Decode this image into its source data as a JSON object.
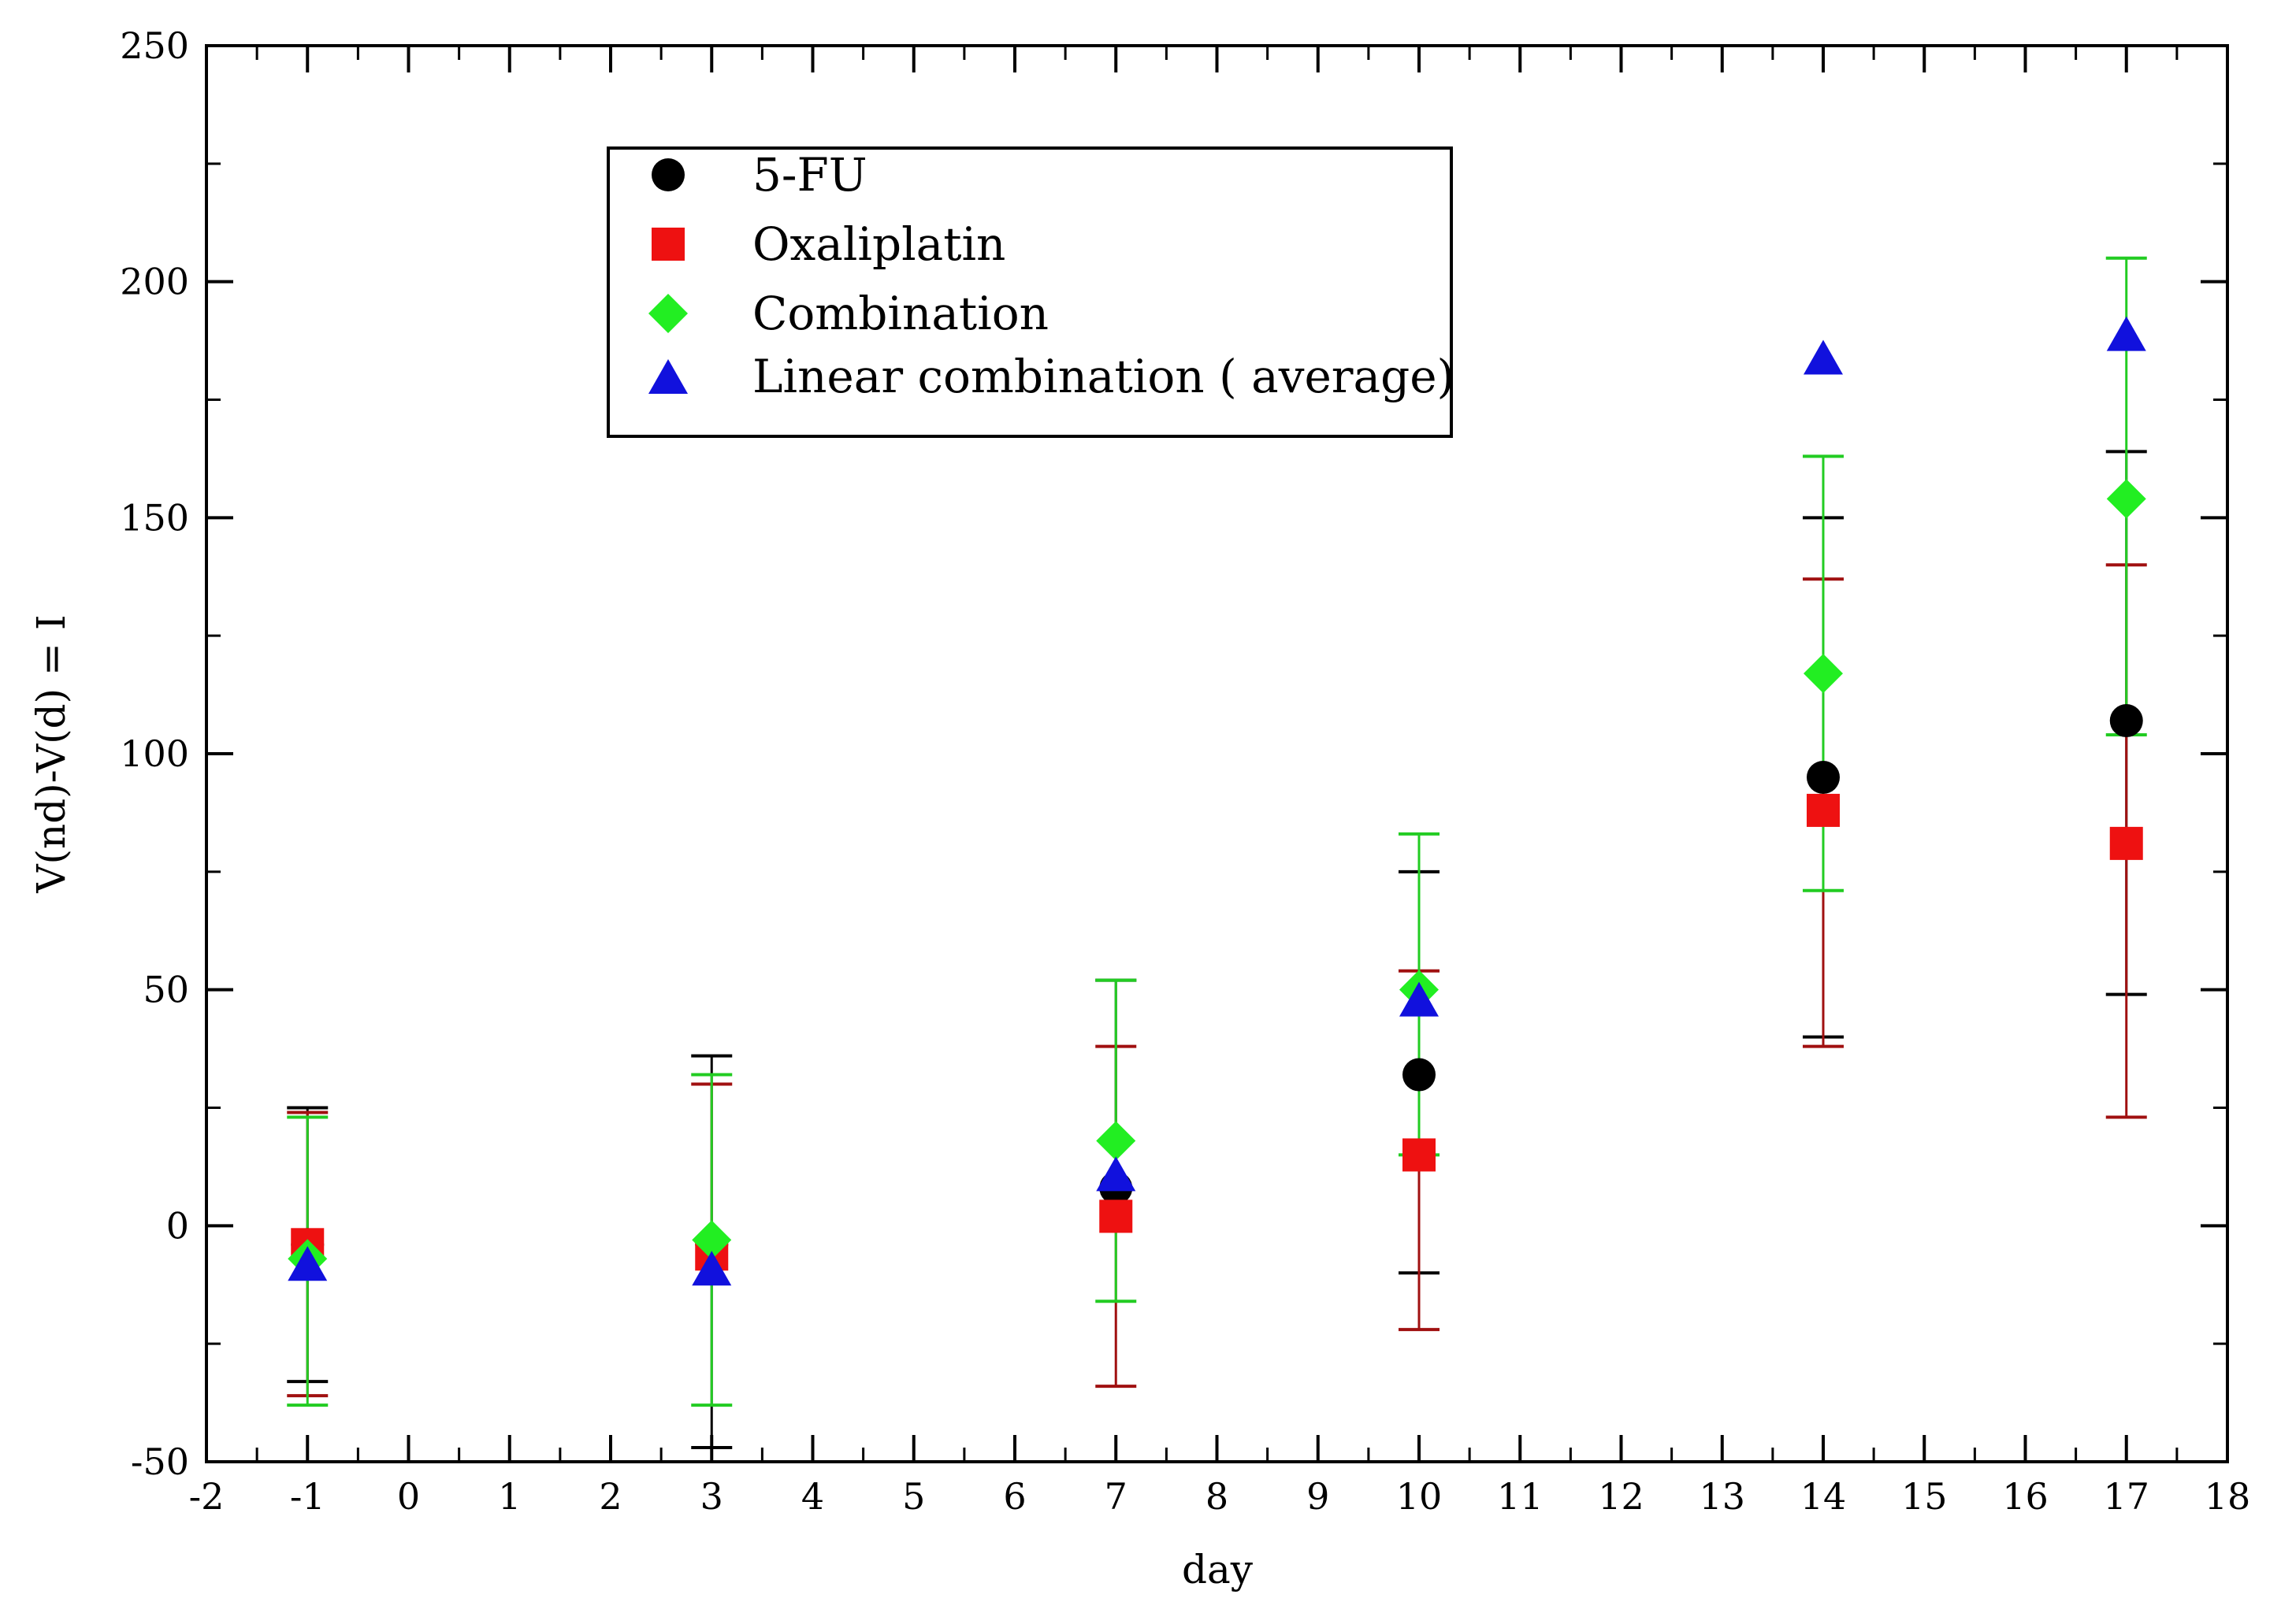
{
  "chart_data": {
    "type": "scatter",
    "title": "",
    "xlabel": "day",
    "ylabel": "V(nd)-V(d) = I",
    "xlim": [
      -2,
      18
    ],
    "ylim": [
      -50,
      250
    ],
    "x_ticks": [
      "-2",
      "-1",
      "0",
      "1",
      "2",
      "3",
      "4",
      "5",
      "6",
      "7",
      "8",
      "9",
      "10",
      "11",
      "12",
      "13",
      "14",
      "15",
      "16",
      "17",
      "18"
    ],
    "y_ticks": [
      "-50",
      "0",
      "50",
      "100",
      "150",
      "200",
      "250"
    ],
    "grid": false,
    "legend_position": "top-left",
    "series": [
      {
        "name": "5-FU",
        "marker": "circle",
        "color": "#000000",
        "errorbar_color": "#000000",
        "points": [
          {
            "x": -1,
            "y": -4,
            "lo": -33,
            "hi": 25
          },
          {
            "x": 3,
            "y": -4,
            "lo": -47,
            "hi": 36
          },
          {
            "x": 7,
            "y": 8,
            "lo": null,
            "hi": 52
          },
          {
            "x": 10,
            "y": 32,
            "lo": -10,
            "hi": 75
          },
          {
            "x": 14,
            "y": 95,
            "lo": 40,
            "hi": 150
          },
          {
            "x": 17,
            "y": 107,
            "lo": 49,
            "hi": 164
          }
        ]
      },
      {
        "name": "Oxaliplatin",
        "marker": "square",
        "color": "#ee1111",
        "errorbar_color": "#a01010",
        "points": [
          {
            "x": -1,
            "y": -4,
            "lo": -36,
            "hi": 24
          },
          {
            "x": 3,
            "y": -6,
            "lo": null,
            "hi": 30
          },
          {
            "x": 7,
            "y": 2,
            "lo": -34,
            "hi": 38
          },
          {
            "x": 10,
            "y": 15,
            "lo": -22,
            "hi": 54
          },
          {
            "x": 14,
            "y": 88,
            "lo": 38,
            "hi": 137
          },
          {
            "x": 17,
            "y": 81,
            "lo": 23,
            "hi": 140
          }
        ]
      },
      {
        "name": "Combination",
        "marker": "diamond",
        "color": "#22ee22",
        "errorbar_color": "#22cc22",
        "points": [
          {
            "x": -1,
            "y": -7,
            "lo": -38,
            "hi": 23
          },
          {
            "x": 3,
            "y": -3,
            "lo": -38,
            "hi": 32
          },
          {
            "x": 7,
            "y": 18,
            "lo": -16,
            "hi": 52
          },
          {
            "x": 10,
            "y": 50,
            "lo": 15,
            "hi": 83
          },
          {
            "x": 14,
            "y": 117,
            "lo": 71,
            "hi": 163
          },
          {
            "x": 17,
            "y": 154,
            "lo": 104,
            "hi": 205
          }
        ]
      },
      {
        "name": "Linear combination ( average)",
        "marker": "triangle",
        "color": "#1111dd",
        "errorbar_color": null,
        "points": [
          {
            "x": -1,
            "y": -8
          },
          {
            "x": 3,
            "y": -9
          },
          {
            "x": 7,
            "y": 11
          },
          {
            "x": 10,
            "y": 48
          },
          {
            "x": 14,
            "y": 184
          },
          {
            "x": 17,
            "y": 189
          }
        ]
      }
    ]
  }
}
